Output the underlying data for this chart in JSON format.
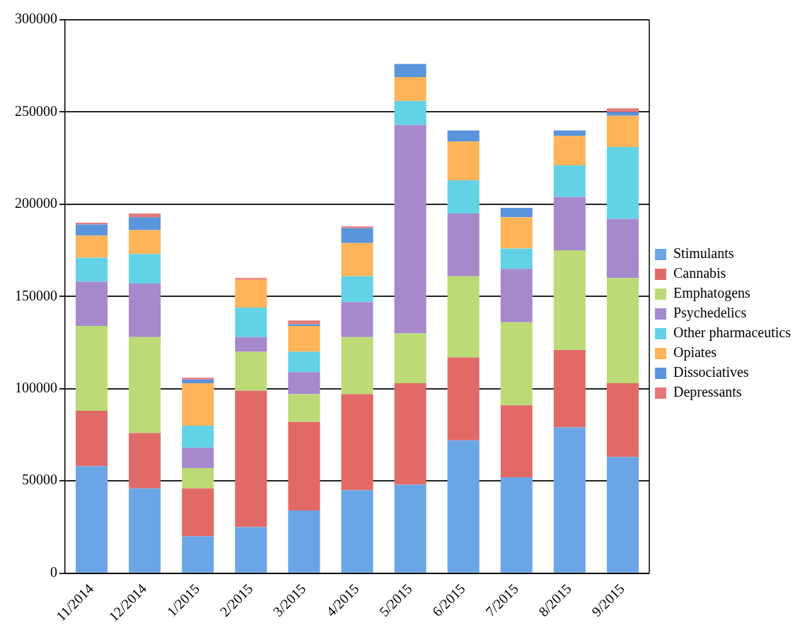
{
  "chart_data": {
    "type": "bar",
    "stacked": true,
    "categories": [
      "11/2014",
      "12/2014",
      "1/2015",
      "2/2015",
      "3/2015",
      "4/2015",
      "5/2015",
      "6/2015",
      "7/2015",
      "8/2015",
      "9/2015"
    ],
    "series": [
      {
        "name": "Stimulants",
        "color": "#6aa6e6",
        "values": [
          58000,
          46000,
          20000,
          25000,
          34000,
          45000,
          48000,
          72000,
          52000,
          79000,
          63000
        ]
      },
      {
        "name": "Cannabis",
        "color": "#e26a66",
        "values": [
          30000,
          30000,
          26000,
          74000,
          48000,
          52000,
          55000,
          45000,
          39000,
          42000,
          40000
        ]
      },
      {
        "name": "Emphatogens",
        "color": "#bcda76",
        "values": [
          46000,
          52000,
          11000,
          21000,
          15000,
          31000,
          27000,
          44000,
          45000,
          54000,
          57000
        ]
      },
      {
        "name": "Psychedelics",
        "color": "#a688cc",
        "values": [
          24000,
          29000,
          11000,
          8000,
          12000,
          19000,
          113000,
          34000,
          29000,
          29000,
          32000
        ]
      },
      {
        "name": "Other pharmaceutics",
        "color": "#62d2e6",
        "values": [
          13000,
          16000,
          12000,
          16000,
          11000,
          14000,
          13000,
          18000,
          11000,
          17000,
          39000
        ]
      },
      {
        "name": "Opiates",
        "color": "#ffb45a",
        "values": [
          12000,
          13000,
          23000,
          15000,
          14000,
          18000,
          13000,
          21000,
          17000,
          16000,
          17000
        ]
      },
      {
        "name": "Dissociatives",
        "color": "#5a94dc",
        "values": [
          6000,
          7000,
          2000,
          0,
          1000,
          8000,
          7000,
          6000,
          5000,
          3000,
          2000
        ]
      },
      {
        "name": "Depressants",
        "color": "#e6787a",
        "values": [
          1000,
          2000,
          1000,
          1000,
          2000,
          1000,
          0,
          0,
          0,
          0,
          2000
        ]
      }
    ],
    "ylim": [
      0,
      300000
    ],
    "yticks": [
      0,
      50000,
      100000,
      150000,
      200000,
      250000,
      300000
    ],
    "grid": "y",
    "legend": "right"
  }
}
